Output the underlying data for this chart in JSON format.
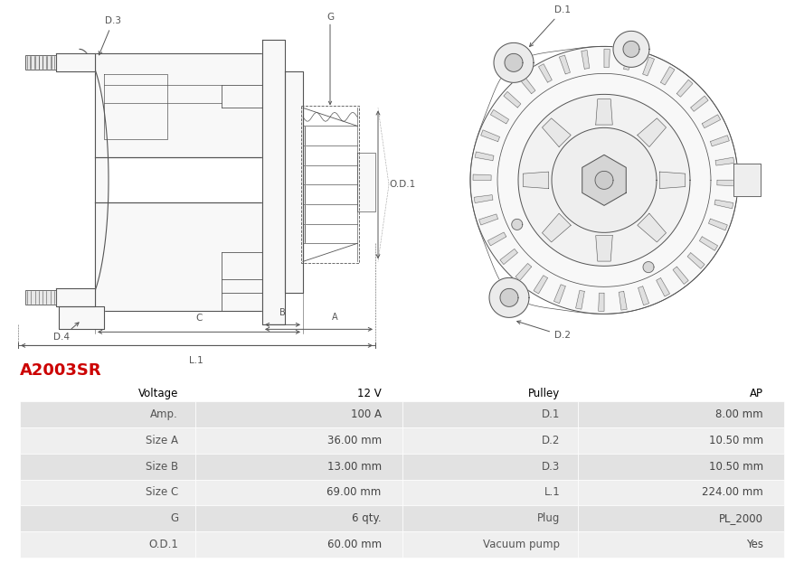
{
  "title": "A2003SR",
  "title_color": "#cc0000",
  "bg_color": "#ffffff",
  "table_row_bg1": "#e2e2e2",
  "table_row_bg2": "#efefef",
  "table_border_color": "#ffffff",
  "left_labels": [
    "Voltage",
    "Amp.",
    "Size A",
    "Size B",
    "Size C",
    "G",
    "O.D.1"
  ],
  "left_values": [
    "12 V",
    "100 A",
    "36.00 mm",
    "13.00 mm",
    "69.00 mm",
    "6 qty.",
    "60.00 mm"
  ],
  "right_labels": [
    "Pulley",
    "D.1",
    "D.2",
    "D.3",
    "L.1",
    "Plug",
    "Vacuum pump"
  ],
  "right_values": [
    "AP",
    "8.00 mm",
    "10.50 mm",
    "10.50 mm",
    "224.00 mm",
    "PL_2000",
    "Yes"
  ],
  "font_color_label": "#555555",
  "font_color_value": "#444444",
  "font_size_title": 13,
  "font_size_table": 8.5,
  "dim_color": "#555555",
  "line_color": "#555555"
}
